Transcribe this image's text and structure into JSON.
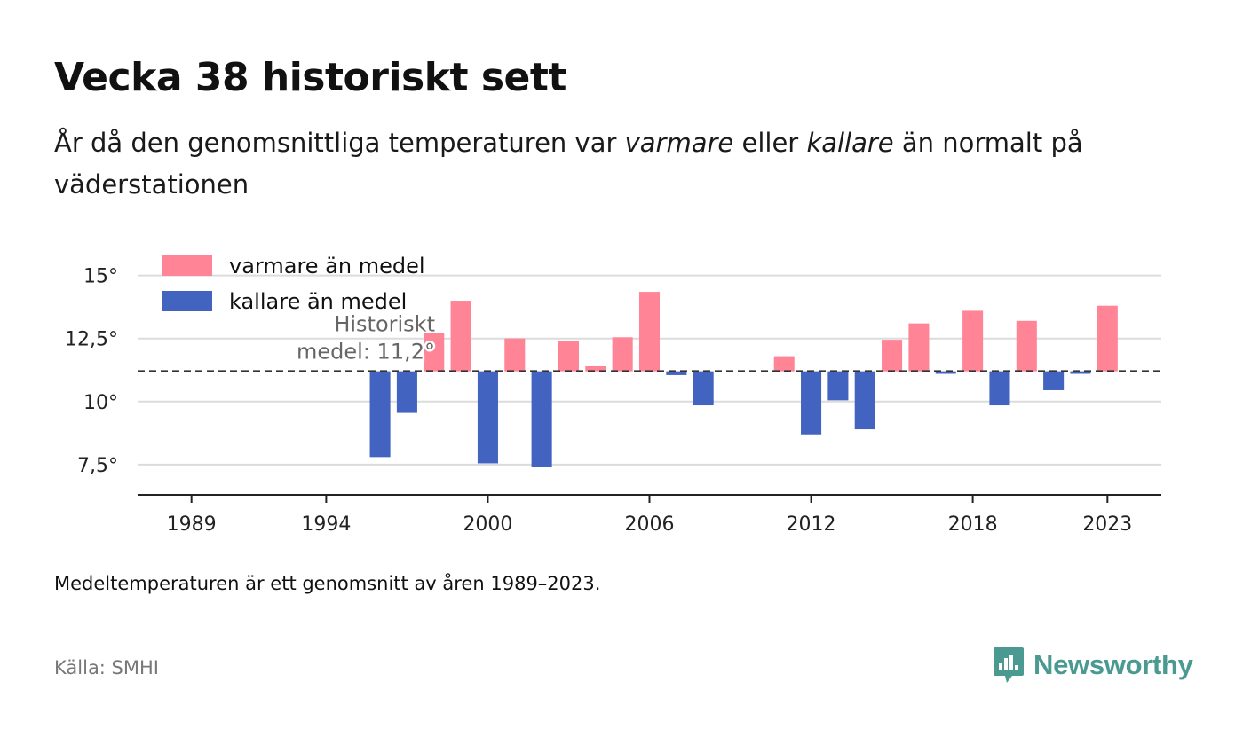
{
  "title": "Vecka 38 historiskt sett",
  "subtitle": {
    "part1": "År då den genomsnittliga temperaturen var ",
    "warm": "varmare",
    "part2": " eller ",
    "cold": "kallare",
    "part3": " än normalt på väderstationen"
  },
  "note": "Medeltemperaturen är ett genomsnitt av åren 1989–2023.",
  "source": "Källa: SMHI",
  "brand": {
    "name": "Newsworthy",
    "icon": "newsworthy-logo-icon",
    "color": "#4a9a92"
  },
  "chart_data": {
    "type": "bar",
    "baseline": 11.2,
    "baseline_label": [
      "Historiskt",
      "medel: 11,2°"
    ],
    "xlim": [
      1987,
      2025
    ],
    "ylim": [
      6.3,
      15.9
    ],
    "x_ticks": [
      {
        "value": 1989,
        "label": "1989"
      },
      {
        "value": 1994,
        "label": "1994"
      },
      {
        "value": 2000,
        "label": "2000"
      },
      {
        "value": 2006,
        "label": "2006"
      },
      {
        "value": 2012,
        "label": "2012"
      },
      {
        "value": 2018,
        "label": "2018"
      },
      {
        "value": 2023,
        "label": "2023"
      }
    ],
    "y_ticks": [
      {
        "value": 7.5,
        "label": "7,5°"
      },
      {
        "value": 10,
        "label": "10°"
      },
      {
        "value": 12.5,
        "label": "12,5°"
      },
      {
        "value": 15,
        "label": "15°"
      }
    ],
    "grid": true,
    "legend": {
      "placement": "top-left",
      "items": [
        {
          "name": "varmare än medel",
          "color": "#ff8596"
        },
        {
          "name": "kallare än medel",
          "color": "#4263c0"
        }
      ]
    },
    "colors": {
      "warm": "#ff8596",
      "cold": "#4263c0"
    },
    "x": [
      1996,
      1997,
      1998,
      1999,
      2000,
      2001,
      2002,
      2003,
      2004,
      2005,
      2006,
      2007,
      2008,
      2011,
      2012,
      2013,
      2014,
      2015,
      2016,
      2017,
      2018,
      2019,
      2020,
      2021,
      2022,
      2023
    ],
    "values": [
      7.8,
      9.55,
      12.7,
      14.0,
      7.55,
      12.5,
      7.4,
      12.4,
      11.4,
      12.55,
      14.35,
      11.05,
      9.85,
      11.8,
      8.7,
      10.05,
      8.9,
      12.45,
      13.1,
      11.1,
      13.6,
      9.85,
      13.2,
      10.45,
      11.1,
      13.8
    ]
  }
}
